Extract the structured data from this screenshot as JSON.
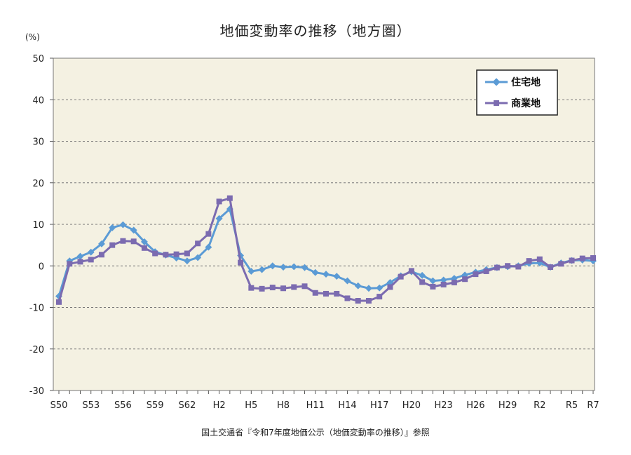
{
  "chart_data": {
    "type": "line",
    "title": "地価変動率の推移（地方圏）",
    "ylabel": "(%)",
    "xlabel": "",
    "ylim": [
      -30,
      50
    ],
    "yticks": [
      50,
      40,
      30,
      20,
      10,
      0,
      -10,
      -20,
      -30
    ],
    "x_tick_labels": [
      "S50",
      "S53",
      "S56",
      "S59",
      "S62",
      "H2",
      "H5",
      "H8",
      "H11",
      "H14",
      "H17",
      "H20",
      "H23",
      "H26",
      "H29",
      "R2",
      "R5",
      "R7"
    ],
    "grid": true,
    "legend_position": "top-right",
    "series": [
      {
        "name": "住宅地",
        "color": "#5b9bd5",
        "marker": "diamond",
        "values": [
          -7.3,
          1.2,
          2.3,
          3.3,
          5.3,
          9.2,
          9.9,
          8.6,
          5.8,
          3.4,
          2.6,
          1.9,
          1.2,
          2.0,
          4.5,
          11.4,
          13.7,
          2.5,
          -1.3,
          -0.9,
          0.0,
          -0.3,
          -0.2,
          -0.4,
          -1.6,
          -2.0,
          -2.5,
          -3.6,
          -4.8,
          -5.4,
          -5.3,
          -4.0,
          -2.4,
          -1.4,
          -2.3,
          -3.6,
          -3.4,
          -3.0,
          -2.2,
          -1.5,
          -0.9,
          -0.4,
          -0.2,
          0.0,
          0.6,
          0.7,
          -0.3,
          0.7,
          1.3,
          1.4,
          1.2
        ]
      },
      {
        "name": "商業地",
        "color": "#7b6bb0",
        "marker": "square",
        "values": [
          -8.7,
          0.5,
          1.0,
          1.5,
          2.7,
          5.0,
          6.0,
          5.9,
          4.3,
          3.0,
          2.7,
          2.8,
          3.0,
          5.4,
          7.7,
          15.5,
          16.3,
          0.8,
          -5.3,
          -5.5,
          -5.2,
          -5.4,
          -5.1,
          -4.9,
          -6.5,
          -6.7,
          -6.7,
          -7.8,
          -8.4,
          -8.4,
          -7.4,
          -5.1,
          -2.6,
          -1.2,
          -3.9,
          -5.0,
          -4.5,
          -4.0,
          -3.2,
          -2.0,
          -1.3,
          -0.4,
          0.0,
          -0.2,
          1.2,
          1.6,
          -0.3,
          0.5,
          1.3,
          1.8,
          1.9
        ]
      }
    ]
  },
  "source_note": "国土交通省『令和7年度地価公示（地価変動率の推移）』参照"
}
